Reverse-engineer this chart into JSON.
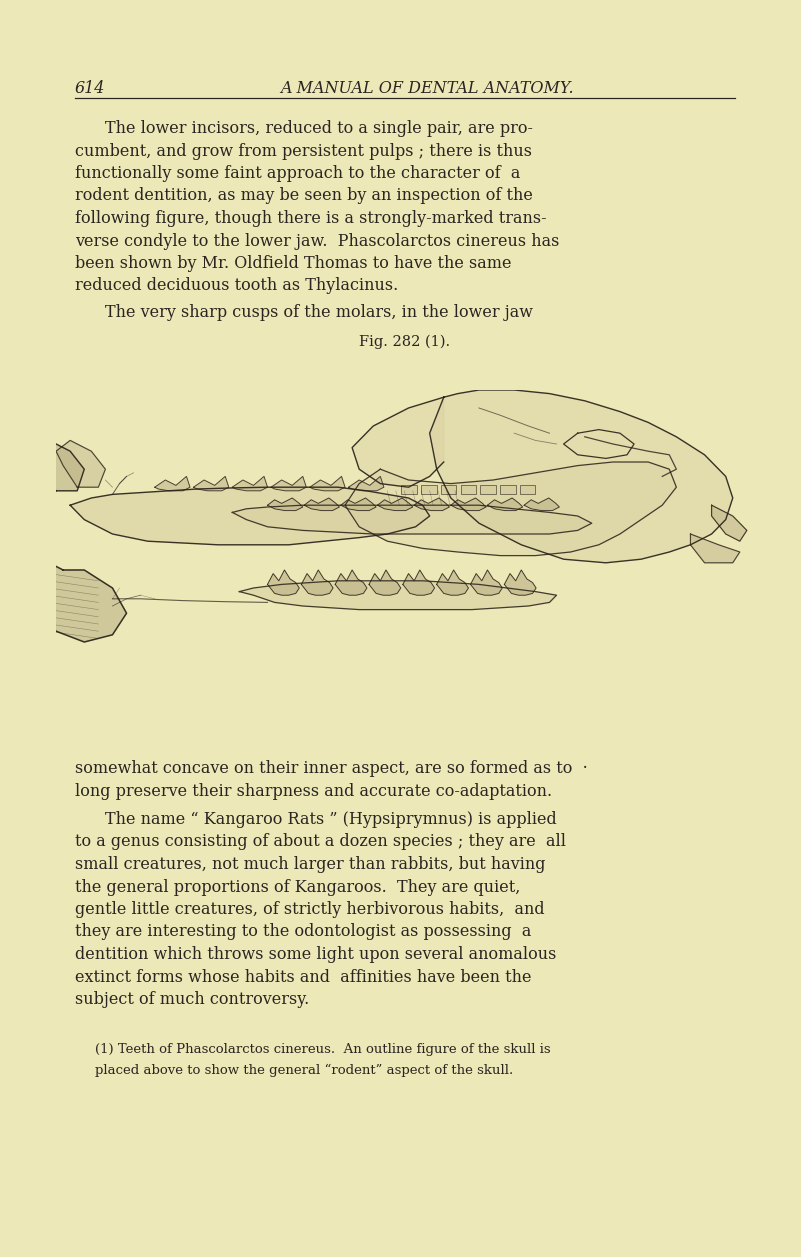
{
  "background_color": "#ede8b8",
  "page_number": "614",
  "header_title": "A MANUAL OF DENTAL ANATOMY.",
  "text_color": "#2a2520",
  "header_fontsize": 11.5,
  "body_fontsize": 11.5,
  "footnote_fontsize": 9.5,
  "fig_label": "Fig. 282 (1).",
  "lines_para1": [
    "The lower incisors, reduced to a single pair, are pro-",
    "cumbent, and grow from persistent pulps ; there is thus",
    "functionally some faint approach to the character of  a",
    "rodent dentition, as may be seen by an inspection of the",
    "following figure, though there is a strongly-marked trans-",
    "verse condyle to the lower jaw.  Phascolarctos cinereus has",
    "been shown by Mr. Oldfield Thomas to have the same",
    "reduced deciduous tooth as Thylacinus."
  ],
  "line_before_fig": "The very sharp cusps of the molars, in the lower jaw",
  "lines_after_fig": [
    "somewhat concave on their inner aspect, are so formed as to  ·",
    "long preserve their sharpness and accurate co-adaptation."
  ],
  "lines_para4": [
    "The name “ Kangaroo Rats ” (Hypsiprymnus) is applied",
    "to a genus consisting of about a dozen species ; they are  all",
    "small creatures, not much larger than rabbits, but having",
    "the general proportions of Kangaroos.  They are quiet,",
    "gentle little creatures, of strictly herbivorous habits,  and",
    "they are interesting to the odontologist as possessing  a",
    "dentition which throws some light upon several anomalous",
    "extinct forms whose habits and  affinities have been the",
    "subject of much controversy."
  ],
  "footnote_lines": [
    "(1) Teeth of Phascolarctos cinereus.  An outline figure of the skull is",
    "placed above to show the general “rodent” aspect of the skull."
  ]
}
